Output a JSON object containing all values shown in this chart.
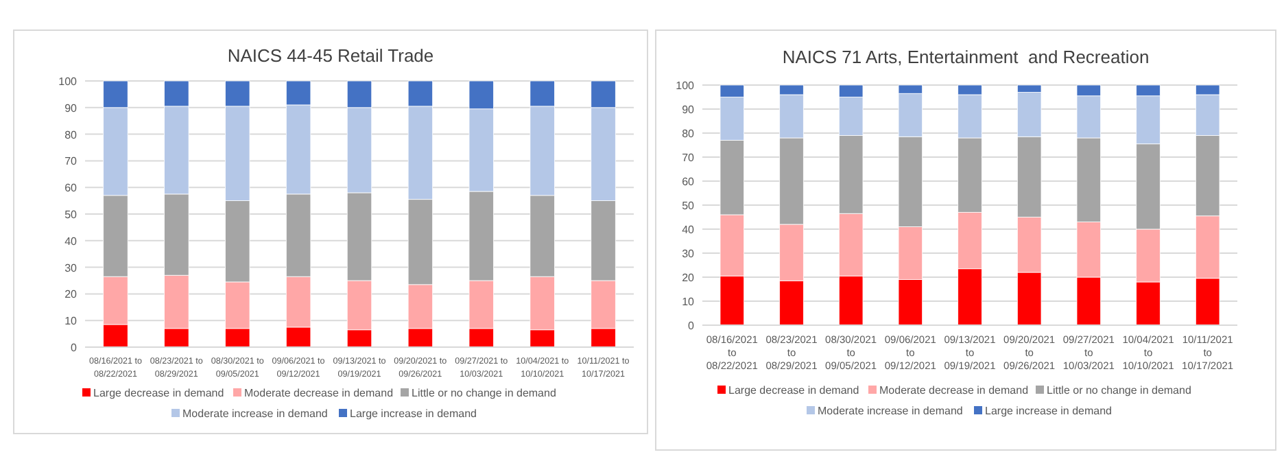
{
  "chart_data": [
    {
      "type": "bar",
      "stacked": true,
      "title": "NAICS 44-45 Retail Trade",
      "categories": [
        "08/16/2021 to 08/22/2021",
        "08/23/2021 to 08/29/2021",
        "08/30/2021 to 09/05/2021",
        "09/06/2021 to 09/12/2021",
        "09/13/2021 to 09/19/2021",
        "09/20/2021 to 09/26/2021",
        "09/27/2021 to 10/03/2021",
        "10/04/2021 to 10/10/2021",
        "10/11/2021 to 10/17/2021"
      ],
      "series": [
        {
          "name": "Large decrease in demand",
          "color": "#ff0000",
          "values": [
            8.5,
            7,
            7,
            7.5,
            6.5,
            7,
            7,
            6.5,
            7
          ]
        },
        {
          "name": "Moderate decrease in demand",
          "color": "#ffa7a7",
          "values": [
            18,
            20,
            17.5,
            19,
            18.5,
            16.5,
            18,
            20,
            18
          ]
        },
        {
          "name": "Little or no change in demand",
          "color": "#a5a5a5",
          "values": [
            30.5,
            30.5,
            30.5,
            31,
            33,
            32,
            33.5,
            30.5,
            30
          ]
        },
        {
          "name": "Moderate increase in demand",
          "color": "#b4c7e7",
          "values": [
            33,
            33,
            35.5,
            33.5,
            32,
            35,
            31,
            33.5,
            35
          ]
        },
        {
          "name": "Large increase in demand",
          "color": "#4472c4",
          "values": [
            10,
            9.5,
            9.5,
            9,
            10,
            9.5,
            10.5,
            9.5,
            10
          ]
        }
      ],
      "ylim": [
        0,
        100
      ],
      "yticks": [
        0,
        10,
        20,
        30,
        40,
        50,
        60,
        70,
        80,
        90,
        100
      ],
      "grid": "y",
      "legend": "bottom"
    },
    {
      "type": "bar",
      "stacked": true,
      "title": "NAICS 71 Arts, Entertainment  and Recreation",
      "categories": [
        "08/16/2021 to 08/22/2021",
        "08/23/2021 to 08/29/2021",
        "08/30/2021 to 09/05/2021",
        "09/06/2021 to 09/12/2021",
        "09/13/2021 to 09/19/2021",
        "09/20/2021 to 09/26/2021",
        "09/27/2021 to 10/03/2021",
        "10/04/2021 to 10/10/2021",
        "10/11/2021 to 10/17/2021"
      ],
      "series": [
        {
          "name": "Large decrease in demand",
          "color": "#ff0000",
          "values": [
            20.5,
            18.5,
            20.5,
            19,
            23.5,
            22,
            20,
            18,
            19.5
          ]
        },
        {
          "name": "Moderate decrease in demand",
          "color": "#ffa7a7",
          "values": [
            25.5,
            23.5,
            26,
            22,
            23.5,
            23,
            23,
            22,
            26
          ]
        },
        {
          "name": "Little or no change in demand",
          "color": "#a5a5a5",
          "values": [
            31,
            36,
            32.5,
            37.5,
            31,
            33.5,
            35,
            35.5,
            33.5
          ]
        },
        {
          "name": "Moderate increase in demand",
          "color": "#b4c7e7",
          "values": [
            18,
            18,
            16,
            18,
            18,
            18.5,
            17.5,
            20,
            17
          ]
        },
        {
          "name": "Large increase in demand",
          "color": "#4472c4",
          "values": [
            5,
            4,
            5,
            3.5,
            4,
            3,
            4.5,
            4.5,
            4
          ]
        }
      ],
      "ylim": [
        0,
        100
      ],
      "yticks": [
        0,
        10,
        20,
        30,
        40,
        50,
        60,
        70,
        80,
        90,
        100
      ],
      "grid": "y",
      "legend": "bottom"
    }
  ]
}
